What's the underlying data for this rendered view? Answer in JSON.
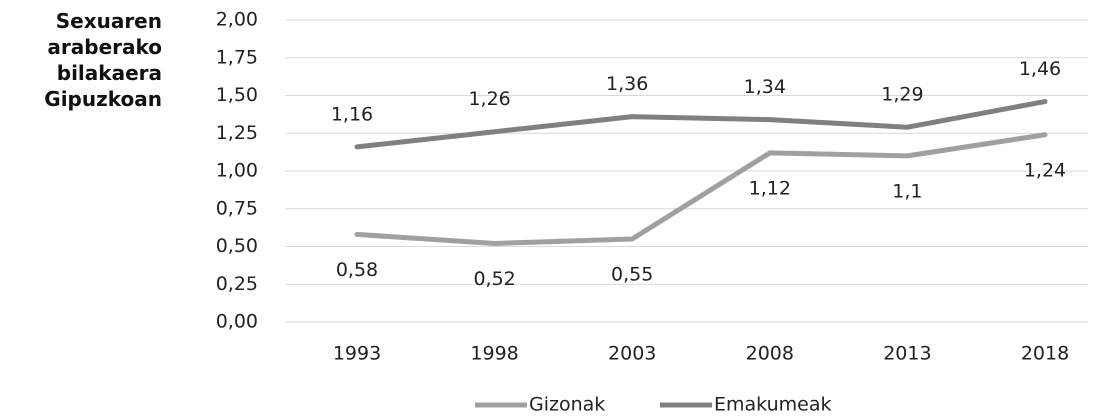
{
  "chart_data": {
    "type": "line",
    "title": "Sexuaren araberako bilakaera Gipuzkoan",
    "categories": [
      "1993",
      "1998",
      "2003",
      "2008",
      "2013",
      "2018"
    ],
    "series": [
      {
        "name": "Gizonak",
        "color": "#a0a0a0",
        "values": [
          0.58,
          0.52,
          0.55,
          1.12,
          1.1,
          1.24
        ],
        "value_labels": [
          "0,58",
          "0,52",
          "0,55",
          "1,12",
          "1,1",
          "1,24"
        ]
      },
      {
        "name": "Emakumeak",
        "color": "#808080",
        "values": [
          1.16,
          1.26,
          1.36,
          1.34,
          1.29,
          1.46
        ],
        "value_labels": [
          "1,16",
          "1,26",
          "1,36",
          "1,34",
          "1,29",
          "1,46"
        ]
      }
    ],
    "ylim": [
      0,
      2
    ],
    "yticks": [
      {
        "value": 0,
        "label": "0,00"
      },
      {
        "value": 0.25,
        "label": "0,25"
      },
      {
        "value": 0.5,
        "label": "0,50"
      },
      {
        "value": 0.75,
        "label": "0,75"
      },
      {
        "value": 1,
        "label": "1,00"
      },
      {
        "value": 1.25,
        "label": "1,25"
      },
      {
        "value": 1.5,
        "label": "1,50"
      },
      {
        "value": 1.75,
        "label": "1,75"
      },
      {
        "value": 2,
        "label": "2,00"
      }
    ],
    "grid": true,
    "legend": "bottom"
  }
}
